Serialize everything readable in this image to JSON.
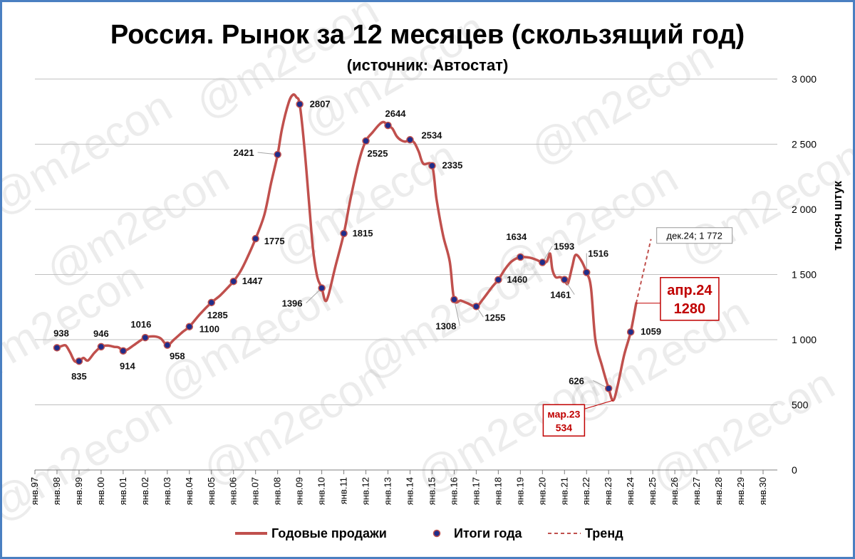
{
  "chart_data": {
    "type": "line",
    "title": "Россия. Рынок за 12 месяцев (скользящий год)",
    "subtitle": "(источник: Автостат)",
    "ylabel": "тысяч штук",
    "ylim": [
      0,
      3000
    ],
    "yticks": [
      {
        "value": 0,
        "label": "0"
      },
      {
        "value": 500,
        "label": "500"
      },
      {
        "value": 1000,
        "label": "1 000"
      },
      {
        "value": 1500,
        "label": "1 500"
      },
      {
        "value": 2000,
        "label": "2 000"
      },
      {
        "value": 2500,
        "label": "2 500"
      },
      {
        "value": 3000,
        "label": "3 000"
      }
    ],
    "grid": true,
    "xticks": [
      "янв.97",
      "янв.98",
      "янв.99",
      "янв.00",
      "янв.01",
      "янв.02",
      "янв.03",
      "янв.04",
      "янв.05",
      "янв.06",
      "янв.07",
      "янв.08",
      "янв.09",
      "янв.10",
      "янв.11",
      "янв.12",
      "янв.13",
      "янв.14",
      "янв.15",
      "янв.16",
      "янв.17",
      "янв.18",
      "янв.19",
      "янв.20",
      "янв.21",
      "янв.22",
      "янв.23",
      "янв.24",
      "янв.25",
      "янв.26",
      "янв.27",
      "янв.28",
      "янв.29",
      "янв.30"
    ],
    "x_start_year": 1997,
    "series": [
      {
        "name": "Годовые продажи",
        "color": "#c0504d",
        "points": [
          [
            1998.0,
            938
          ],
          [
            1998.2,
            950
          ],
          [
            1998.4,
            955
          ],
          [
            1998.6,
            900
          ],
          [
            1998.8,
            835
          ],
          [
            1999.0,
            835
          ],
          [
            1999.2,
            860
          ],
          [
            1999.4,
            840
          ],
          [
            1999.7,
            900
          ],
          [
            2000.0,
            946
          ],
          [
            2000.3,
            955
          ],
          [
            2000.6,
            945
          ],
          [
            2000.8,
            940
          ],
          [
            2001.0,
            914
          ],
          [
            2001.2,
            925
          ],
          [
            2001.5,
            960
          ],
          [
            2002.0,
            1016
          ],
          [
            2002.4,
            1025
          ],
          [
            2002.7,
            1010
          ],
          [
            2003.0,
            958
          ],
          [
            2003.3,
            1000
          ],
          [
            2003.7,
            1060
          ],
          [
            2004.0,
            1100
          ],
          [
            2004.5,
            1200
          ],
          [
            2005.0,
            1285
          ],
          [
            2005.4,
            1340
          ],
          [
            2005.8,
            1410
          ],
          [
            2006.0,
            1447
          ],
          [
            2006.3,
            1520
          ],
          [
            2006.6,
            1620
          ],
          [
            2007.0,
            1775
          ],
          [
            2007.4,
            1960
          ],
          [
            2007.7,
            2200
          ],
          [
            2008.0,
            2421
          ],
          [
            2008.2,
            2620
          ],
          [
            2008.5,
            2820
          ],
          [
            2008.7,
            2880
          ],
          [
            2008.85,
            2860
          ],
          [
            2009.0,
            2807
          ],
          [
            2009.2,
            2500
          ],
          [
            2009.4,
            2100
          ],
          [
            2009.6,
            1700
          ],
          [
            2009.8,
            1480
          ],
          [
            2010.0,
            1396
          ],
          [
            2010.15,
            1300
          ],
          [
            2010.3,
            1340
          ],
          [
            2010.6,
            1550
          ],
          [
            2011.0,
            1815
          ],
          [
            2011.3,
            2080
          ],
          [
            2011.7,
            2380
          ],
          [
            2012.0,
            2525
          ],
          [
            2012.3,
            2590
          ],
          [
            2012.6,
            2650
          ],
          [
            2012.8,
            2670
          ],
          [
            2013.0,
            2644
          ],
          [
            2013.2,
            2620
          ],
          [
            2013.4,
            2560
          ],
          [
            2013.6,
            2530
          ],
          [
            2013.8,
            2520
          ],
          [
            2014.0,
            2534
          ],
          [
            2014.2,
            2510
          ],
          [
            2014.4,
            2440
          ],
          [
            2014.6,
            2350
          ],
          [
            2015.0,
            2335
          ],
          [
            2015.2,
            2080
          ],
          [
            2015.5,
            1800
          ],
          [
            2015.8,
            1600
          ],
          [
            2016.0,
            1308
          ],
          [
            2016.3,
            1300
          ],
          [
            2016.6,
            1280
          ],
          [
            2017.0,
            1255
          ],
          [
            2017.3,
            1310
          ],
          [
            2017.7,
            1400
          ],
          [
            2018.0,
            1460
          ],
          [
            2018.3,
            1540
          ],
          [
            2018.6,
            1600
          ],
          [
            2019.0,
            1634
          ],
          [
            2019.4,
            1630
          ],
          [
            2019.7,
            1615
          ],
          [
            2020.0,
            1593
          ],
          [
            2020.2,
            1600
          ],
          [
            2020.35,
            1660
          ],
          [
            2020.45,
            1540
          ],
          [
            2020.6,
            1480
          ],
          [
            2020.8,
            1480
          ],
          [
            2021.0,
            1461
          ],
          [
            2021.15,
            1430
          ],
          [
            2021.35,
            1560
          ],
          [
            2021.5,
            1650
          ],
          [
            2021.75,
            1610
          ],
          [
            2022.0,
            1516
          ],
          [
            2022.2,
            1400
          ],
          [
            2022.4,
            1000
          ],
          [
            2022.7,
            800
          ],
          [
            2023.0,
            626
          ],
          [
            2023.2,
            534
          ],
          [
            2023.4,
            640
          ],
          [
            2023.7,
            880
          ],
          [
            2024.0,
            1059
          ],
          [
            2024.25,
            1280
          ]
        ]
      },
      {
        "name": "Итоги года",
        "color": "#1f2d8a",
        "points": [
          [
            1998,
            938
          ],
          [
            1999,
            835
          ],
          [
            2000,
            946
          ],
          [
            2001,
            914
          ],
          [
            2002,
            1016
          ],
          [
            2003,
            958
          ],
          [
            2004,
            1100
          ],
          [
            2005,
            1285
          ],
          [
            2006,
            1447
          ],
          [
            2007,
            1775
          ],
          [
            2008,
            2421
          ],
          [
            2009,
            2807
          ],
          [
            2010,
            1396
          ],
          [
            2011,
            1815
          ],
          [
            2012,
            2525
          ],
          [
            2013,
            2644
          ],
          [
            2014,
            2534
          ],
          [
            2015,
            2335
          ],
          [
            2016,
            1308
          ],
          [
            2017,
            1255
          ],
          [
            2018,
            1460
          ],
          [
            2019,
            1634
          ],
          [
            2020,
            1593
          ],
          [
            2021,
            1461
          ],
          [
            2022,
            1516
          ],
          [
            2023,
            626
          ],
          [
            2024,
            1059
          ]
        ]
      },
      {
        "name": "Тренд",
        "color": "#c0504d",
        "dashed": true,
        "points": [
          [
            2024.25,
            1280
          ],
          [
            2024.92,
            1772
          ]
        ]
      }
    ],
    "annotations": [
      {
        "text": "дек.24; 1 772",
        "x": 2024.92,
        "y": 1772
      },
      {
        "line1": "апр.24",
        "line2": "1280",
        "x": 2024.25,
        "y": 1280
      },
      {
        "line1": "мар.23",
        "line2": "534",
        "x": 2023.2,
        "y": 534
      }
    ],
    "legend": {
      "position": "bottom",
      "items": [
        {
          "label": "Годовые продажи",
          "style": "line",
          "color": "#c0504d"
        },
        {
          "label": "Итоги года",
          "style": "marker",
          "color": "#1f2d8a"
        },
        {
          "label": "Тренд",
          "style": "dashed",
          "color": "#c0504d"
        }
      ]
    }
  },
  "watermark": "@m2econ"
}
